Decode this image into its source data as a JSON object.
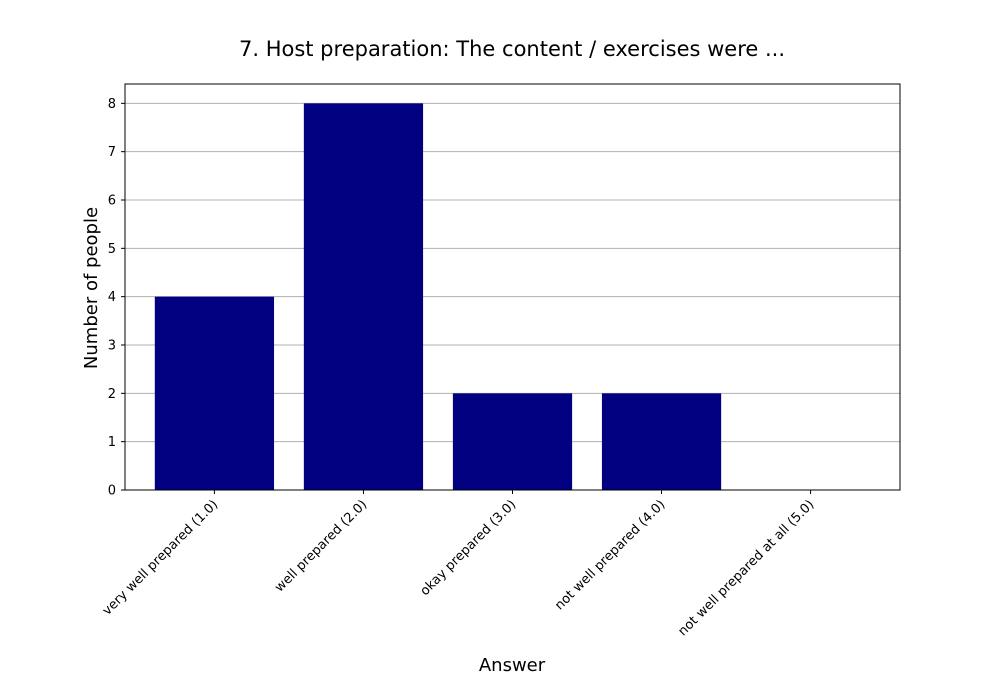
{
  "chart_data": {
    "type": "bar",
    "title": "7. Host preparation: The content / exercises were ...",
    "xlabel": "Answer",
    "ylabel": "Number of people",
    "categories": [
      "very well prepared (1.0)",
      "well prepared (2.0)",
      "okay prepared (3.0)",
      "not well prepared (4.0)",
      "not well prepared at all (5.0)"
    ],
    "values": [
      4,
      8,
      2,
      2,
      0
    ],
    "ylim": [
      0,
      8.4
    ],
    "yticks": [
      0,
      1,
      2,
      3,
      4,
      5,
      6,
      7,
      8
    ],
    "grid": "y",
    "legend": "none",
    "bar_color": "#000080",
    "grid_color": "#b0b0b0"
  }
}
